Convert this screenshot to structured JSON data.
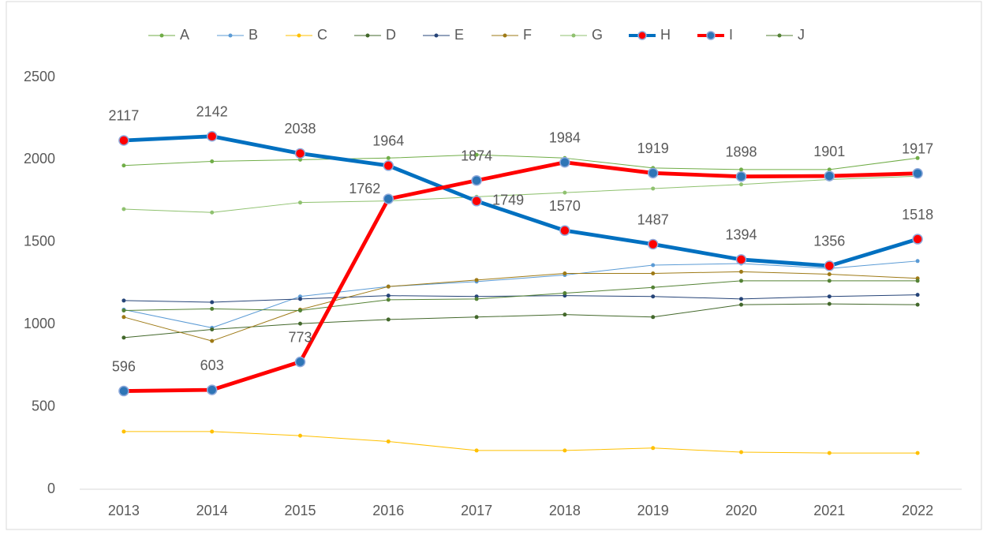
{
  "chart_data": {
    "type": "line",
    "categories": [
      "2013",
      "2014",
      "2015",
      "2016",
      "2017",
      "2018",
      "2019",
      "2020",
      "2021",
      "2022"
    ],
    "ylim": [
      0,
      2500
    ],
    "yticks": [
      0,
      500,
      1000,
      1500,
      2000,
      2500
    ],
    "grid": false,
    "legend": "top",
    "series": [
      {
        "name": "A",
        "color": "#70ad47",
        "marker_color": "#70ad47",
        "line_width": 1,
        "values": [
          1965,
          1990,
          2000,
          2010,
          2030,
          2010,
          1950,
          1940,
          1940,
          2010
        ]
      },
      {
        "name": "B",
        "color": "#5b9bd5",
        "marker_color": "#5b9bd5",
        "line_width": 1,
        "values": [
          1090,
          980,
          1170,
          1230,
          1260,
          1300,
          1360,
          1370,
          1340,
          1385
        ]
      },
      {
        "name": "C",
        "color": "#ffc000",
        "marker_color": "#ffc000",
        "line_width": 1,
        "values": [
          350,
          350,
          325,
          290,
          235,
          235,
          250,
          225,
          220,
          220
        ]
      },
      {
        "name": "D",
        "color": "#43682b",
        "marker_color": "#43682b",
        "line_width": 1,
        "values": [
          920,
          970,
          1005,
          1030,
          1045,
          1060,
          1045,
          1120,
          1125,
          1120
        ]
      },
      {
        "name": "E",
        "color": "#264478",
        "marker_color": "#264478",
        "line_width": 1,
        "values": [
          1145,
          1135,
          1155,
          1175,
          1170,
          1175,
          1170,
          1155,
          1170,
          1180
        ]
      },
      {
        "name": "F",
        "color": "#9e7a16",
        "marker_color": "#9e7a16",
        "line_width": 1,
        "values": [
          1045,
          900,
          1090,
          1230,
          1270,
          1310,
          1310,
          1320,
          1305,
          1280
        ]
      },
      {
        "name": "G",
        "color": "#8fc16f",
        "marker_color": "#8fc16f",
        "line_width": 1,
        "values": [
          1700,
          1680,
          1740,
          1750,
          1775,
          1800,
          1825,
          1850,
          1880,
          1900
        ]
      },
      {
        "name": "H",
        "color": "#0070c0",
        "marker_color": "#ff0000",
        "line_width": 4,
        "data_labels": true,
        "values": [
          2117,
          2142,
          2038,
          1964,
          1749,
          1570,
          1487,
          1394,
          1356,
          1518
        ]
      },
      {
        "name": "I",
        "color": "#ff0000",
        "marker_color": "#2e75b6",
        "line_width": 4,
        "data_labels": true,
        "values": [
          596,
          603,
          773,
          1762,
          1874,
          1984,
          1919,
          1898,
          1901,
          1917
        ]
      },
      {
        "name": "J",
        "color": "#548235",
        "marker_color": "#548235",
        "line_width": 1,
        "values": [
          1085,
          1095,
          1085,
          1150,
          1155,
          1190,
          1225,
          1265,
          1265,
          1265
        ]
      }
    ]
  }
}
